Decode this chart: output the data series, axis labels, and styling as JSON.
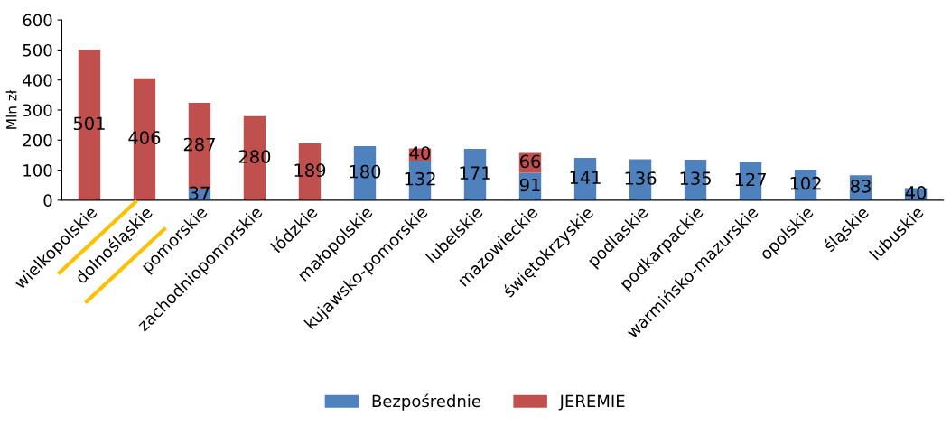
{
  "chart_data": {
    "type": "bar",
    "stacked": true,
    "ylabel": "Mln zł",
    "categories": [
      "wielkopolskie",
      "dolnośląskie",
      "pomorskie",
      "zachodniopomorskie",
      "łódzkie",
      "małopolskie",
      "kujawsko-pomorskie",
      "lubelskie",
      "mazowieckie",
      "świętokrzyskie",
      "podlaskie",
      "podkarpackie",
      "warmińsko-mazurskie",
      "opolskie",
      "śląskie",
      "lubuskie"
    ],
    "series": [
      {
        "name": "Bezpośrednie",
        "color": "#4f81bd",
        "values": [
          null,
          null,
          37,
          null,
          null,
          180,
          132,
          171,
          91,
          141,
          136,
          135,
          127,
          102,
          83,
          40
        ]
      },
      {
        "name": "JEREMIE",
        "color": "#c0504d",
        "values": [
          501,
          406,
          287,
          280,
          189,
          null,
          40,
          null,
          66,
          null,
          null,
          null,
          null,
          null,
          null,
          null
        ]
      }
    ],
    "ylim": [
      0,
      600
    ],
    "yticks": [
      0,
      100,
      200,
      300,
      400,
      500,
      600
    ],
    "grid": false,
    "legend": "bottom",
    "data_labels": true
  }
}
